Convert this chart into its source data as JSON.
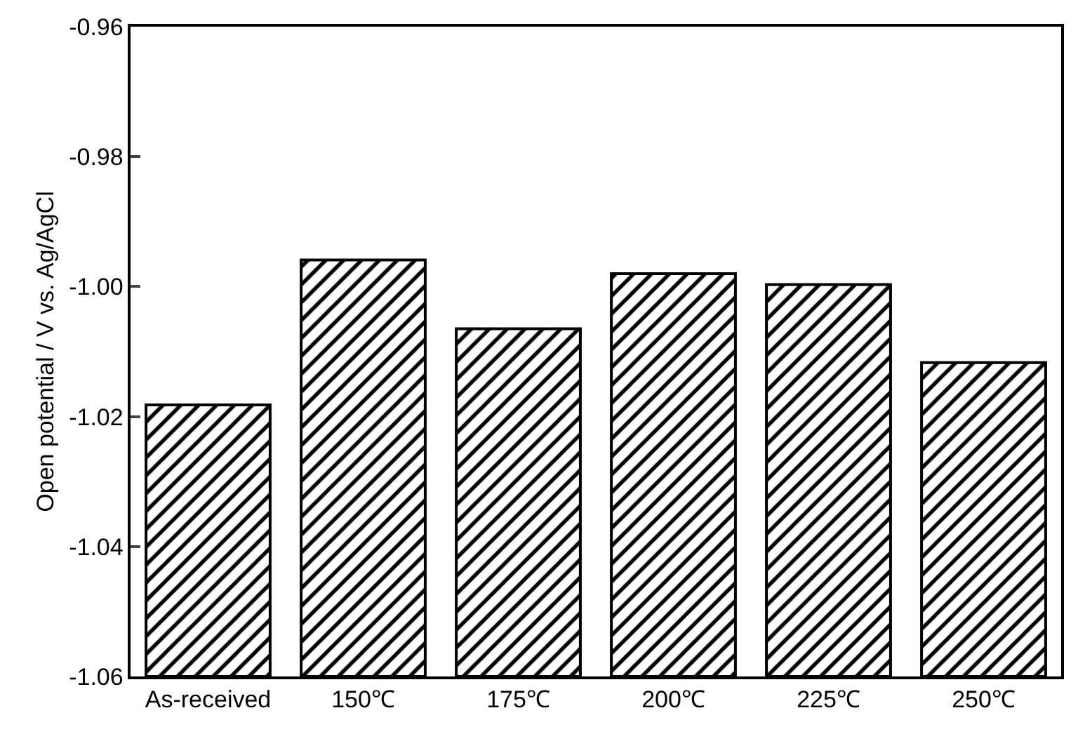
{
  "chart_data": {
    "type": "bar",
    "ylabel": "Open potential / V vs. Ag/AgCl",
    "categories": [
      "As-received",
      "150℃",
      "175℃",
      "200℃",
      "225℃",
      "250℃"
    ],
    "base": [
      -1.06,
      -1.06,
      -1.06,
      -1.06,
      -1.06,
      -1.06
    ],
    "values": [
      0.0418,
      0.0641,
      0.0535,
      0.062,
      0.0603,
      0.0483
    ],
    "color": "#000000",
    "ylim": [
      -1.06,
      -0.96
    ],
    "yticks": [
      {
        "value": -1.06,
        "label": "-1.06"
      },
      {
        "value": -1.04,
        "label": "-1.04"
      },
      {
        "value": -1.02,
        "label": "-1.02"
      },
      {
        "value": -1.0,
        "label": "-1.00"
      },
      {
        "value": -0.98,
        "label": "-0.98"
      },
      {
        "value": -0.96,
        "label": "-0.96"
      }
    ],
    "grid": false,
    "legend": false
  }
}
